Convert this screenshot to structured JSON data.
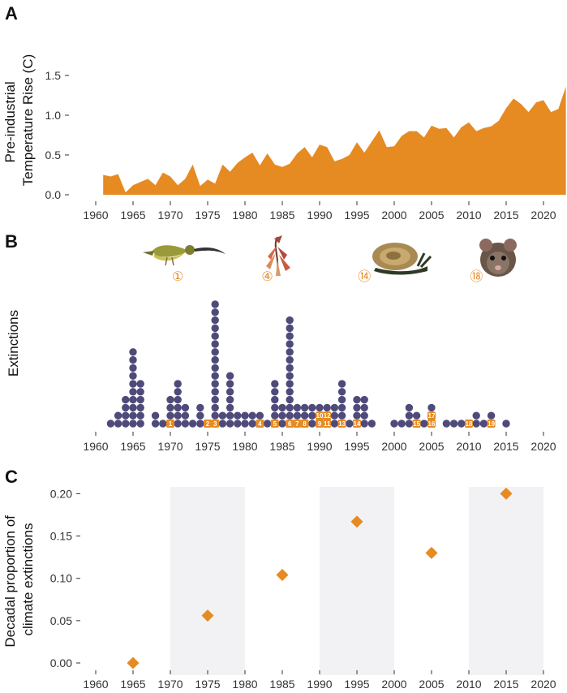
{
  "panels": {
    "a": {
      "letter": "A"
    },
    "b": {
      "letter": "B"
    },
    "c": {
      "letter": "C"
    }
  },
  "colors": {
    "orange": "#e68a22",
    "dot": "#4e4a7a",
    "band": "#f2f2f5",
    "axis": "#333333"
  },
  "chart_data": [
    {
      "type": "area",
      "ylabel": "Pre-industrial\nTemperature Rise (C)",
      "xlabel": "",
      "xlim": [
        1960,
        2023
      ],
      "ylim": [
        0,
        1.5
      ],
      "xticks": [
        "1960",
        "1965",
        "1970",
        "1975",
        "1980",
        "1985",
        "1990",
        "1995",
        "2000",
        "2005",
        "2010",
        "2015",
        "2020"
      ],
      "yticks": [
        "0.0",
        "0.5",
        "1.0",
        "1.5"
      ],
      "x": [
        1961,
        1962,
        1963,
        1964,
        1965,
        1966,
        1967,
        1968,
        1969,
        1970,
        1971,
        1972,
        1973,
        1974,
        1975,
        1976,
        1977,
        1978,
        1979,
        1980,
        1981,
        1982,
        1983,
        1984,
        1985,
        1986,
        1987,
        1988,
        1989,
        1990,
        1991,
        1992,
        1993,
        1994,
        1995,
        1996,
        1997,
        1998,
        1999,
        2000,
        2001,
        2002,
        2003,
        2004,
        2005,
        2006,
        2007,
        2008,
        2009,
        2010,
        2011,
        2012,
        2013,
        2014,
        2015,
        2016,
        2017,
        2018,
        2019,
        2020,
        2021,
        2022,
        2023
      ],
      "values": [
        0.25,
        0.23,
        0.26,
        0.03,
        0.12,
        0.16,
        0.2,
        0.12,
        0.28,
        0.23,
        0.12,
        0.2,
        0.38,
        0.11,
        0.19,
        0.14,
        0.38,
        0.29,
        0.4,
        0.47,
        0.53,
        0.37,
        0.52,
        0.38,
        0.35,
        0.39,
        0.52,
        0.6,
        0.47,
        0.63,
        0.6,
        0.42,
        0.45,
        0.5,
        0.66,
        0.53,
        0.67,
        0.81,
        0.6,
        0.61,
        0.74,
        0.8,
        0.8,
        0.72,
        0.87,
        0.83,
        0.84,
        0.72,
        0.85,
        0.91,
        0.8,
        0.84,
        0.86,
        0.93,
        1.09,
        1.21,
        1.14,
        1.04,
        1.16,
        1.19,
        1.04,
        1.08,
        1.36
      ]
    },
    {
      "type": "scatter",
      "ylabel": "Extinctions",
      "xlabel": "",
      "xlim": [
        1960,
        2023
      ],
      "xticks": [
        "1960",
        "1965",
        "1970",
        "1975",
        "1980",
        "1985",
        "1990",
        "1995",
        "2000",
        "2005",
        "2010",
        "2015",
        "2020"
      ],
      "counts": [
        {
          "year": 1962,
          "n": 1
        },
        {
          "year": 1963,
          "n": 2
        },
        {
          "year": 1964,
          "n": 4
        },
        {
          "year": 1965,
          "n": 10
        },
        {
          "year": 1966,
          "n": 6
        },
        {
          "year": 1968,
          "n": 2
        },
        {
          "year": 1969,
          "n": 1
        },
        {
          "year": 1970,
          "n": 4
        },
        {
          "year": 1971,
          "n": 6
        },
        {
          "year": 1972,
          "n": 3
        },
        {
          "year": 1973,
          "n": 1
        },
        {
          "year": 1974,
          "n": 3
        },
        {
          "year": 1975,
          "n": 1
        },
        {
          "year": 1976,
          "n": 16
        },
        {
          "year": 1977,
          "n": 2
        },
        {
          "year": 1978,
          "n": 7
        },
        {
          "year": 1979,
          "n": 2
        },
        {
          "year": 1980,
          "n": 2
        },
        {
          "year": 1981,
          "n": 2
        },
        {
          "year": 1982,
          "n": 2
        },
        {
          "year": 1983,
          "n": 1
        },
        {
          "year": 1984,
          "n": 6
        },
        {
          "year": 1985,
          "n": 3
        },
        {
          "year": 1986,
          "n": 14
        },
        {
          "year": 1987,
          "n": 3
        },
        {
          "year": 1988,
          "n": 3
        },
        {
          "year": 1989,
          "n": 3
        },
        {
          "year": 1990,
          "n": 3
        },
        {
          "year": 1991,
          "n": 3
        },
        {
          "year": 1992,
          "n": 3
        },
        {
          "year": 1993,
          "n": 6
        },
        {
          "year": 1994,
          "n": 1
        },
        {
          "year": 1995,
          "n": 4
        },
        {
          "year": 1996,
          "n": 4
        },
        {
          "year": 1997,
          "n": 1
        },
        {
          "year": 2000,
          "n": 1
        },
        {
          "year": 2001,
          "n": 1
        },
        {
          "year": 2002,
          "n": 3
        },
        {
          "year": 2003,
          "n": 2
        },
        {
          "year": 2004,
          "n": 1
        },
        {
          "year": 2005,
          "n": 3
        },
        {
          "year": 2007,
          "n": 1
        },
        {
          "year": 2008,
          "n": 1
        },
        {
          "year": 2009,
          "n": 1
        },
        {
          "year": 2010,
          "n": 1
        },
        {
          "year": 2011,
          "n": 2
        },
        {
          "year": 2012,
          "n": 1
        },
        {
          "year": 2013,
          "n": 2
        },
        {
          "year": 2015,
          "n": 1
        }
      ],
      "climate_labels": [
        {
          "year": 1970,
          "level": 0,
          "text": "1"
        },
        {
          "year": 1975,
          "level": 0,
          "text": "2"
        },
        {
          "year": 1976,
          "level": 0,
          "text": "3"
        },
        {
          "year": 1982,
          "level": 0,
          "text": "4"
        },
        {
          "year": 1984,
          "level": 0,
          "text": "5"
        },
        {
          "year": 1986,
          "level": 0,
          "text": "6"
        },
        {
          "year": 1987,
          "level": 0,
          "text": "7"
        },
        {
          "year": 1988,
          "level": 0,
          "text": "8"
        },
        {
          "year": 1990,
          "level": 0,
          "text": "9"
        },
        {
          "year": 1990,
          "level": 1,
          "text": "10"
        },
        {
          "year": 1991,
          "level": 0,
          "text": "11"
        },
        {
          "year": 1991,
          "level": 1,
          "text": "12"
        },
        {
          "year": 1993,
          "level": 0,
          "text": "13"
        },
        {
          "year": 1995,
          "level": 0,
          "text": "14"
        },
        {
          "year": 2003,
          "level": 0,
          "text": "15"
        },
        {
          "year": 2005,
          "level": 0,
          "text": "16"
        },
        {
          "year": 2005,
          "level": 1,
          "text": "17"
        },
        {
          "year": 2010,
          "level": 0,
          "text": "18"
        },
        {
          "year": 2013,
          "level": 0,
          "text": "19"
        }
      ],
      "pictures": [
        {
          "name": "bird",
          "year": 1971,
          "label": "①"
        },
        {
          "name": "flower",
          "year": 1983,
          "label": "④"
        },
        {
          "name": "snail",
          "year": 1996,
          "label": "⑭"
        },
        {
          "name": "mouse",
          "year": 2011,
          "label": "⑱"
        }
      ]
    },
    {
      "type": "scatter",
      "ylabel": "Decadal proportion of\nclimate extinctions",
      "xlabel": "",
      "xlim": [
        1960,
        2020
      ],
      "ylim": [
        0,
        0.2
      ],
      "xticks": [
        "1960",
        "1965",
        "1970",
        "1975",
        "1980",
        "1985",
        "1990",
        "1995",
        "2000",
        "2005",
        "2010",
        "2015",
        "2020"
      ],
      "yticks": [
        "0.00",
        "0.05",
        "0.10",
        "0.15",
        "0.20"
      ],
      "shaded_decades": [
        [
          1970,
          1980
        ],
        [
          1990,
          2000
        ],
        [
          2010,
          2020
        ]
      ],
      "x": [
        1965,
        1975,
        1985,
        1995,
        2005,
        2015
      ],
      "values": [
        0.0,
        0.056,
        0.104,
        0.167,
        0.13,
        0.2
      ]
    }
  ]
}
